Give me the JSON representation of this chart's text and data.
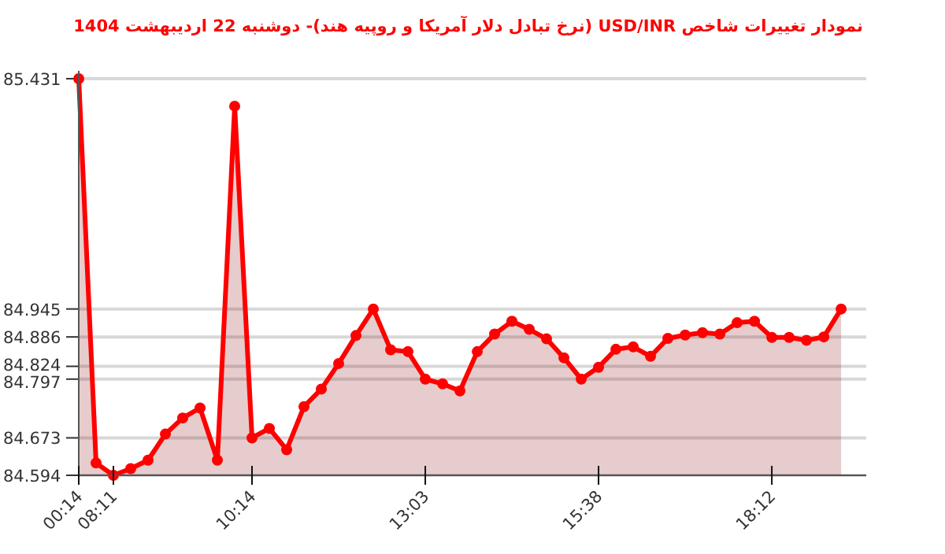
{
  "chart_data": {
    "type": "area",
    "title": "نمودار تغییرات شاخص USD/INR (نرخ تبادل دلار آمریکا و روپیه هند)- دوشنبه  22 اردیبهشت 1404",
    "categories": [
      "00:14",
      null,
      "08:11",
      null,
      null,
      null,
      null,
      null,
      null,
      null,
      "10:14",
      null,
      null,
      null,
      null,
      null,
      null,
      null,
      null,
      null,
      "13:03",
      null,
      null,
      null,
      null,
      null,
      null,
      null,
      null,
      null,
      "15:38",
      null,
      null,
      null,
      null,
      null,
      null,
      null,
      null,
      null,
      "18:12",
      null,
      null,
      null,
      null
    ],
    "series": [
      {
        "color": "#ff0000",
        "values": [
          85.431,
          84.62,
          84.594,
          84.608,
          84.626,
          84.681,
          84.715,
          84.736,
          84.626,
          85.373,
          84.673,
          84.693,
          84.648,
          84.739,
          84.776,
          84.83,
          84.889,
          84.945,
          84.859,
          84.855,
          84.797,
          84.787,
          84.772,
          84.855,
          84.892,
          84.919,
          84.902,
          84.882,
          84.842,
          84.797,
          84.822,
          84.86,
          84.865,
          84.845,
          84.883,
          84.89,
          84.895,
          84.892,
          84.916,
          84.919,
          84.885,
          84.885,
          84.879,
          84.886,
          84.945
        ]
      }
    ],
    "ylim": [
      84.594,
      85.431
    ],
    "yticks": [
      84.594,
      84.673,
      84.797,
      84.824,
      84.886,
      84.945,
      85.431
    ],
    "grid": "y",
    "marker": "circle",
    "line_style": "solid"
  }
}
